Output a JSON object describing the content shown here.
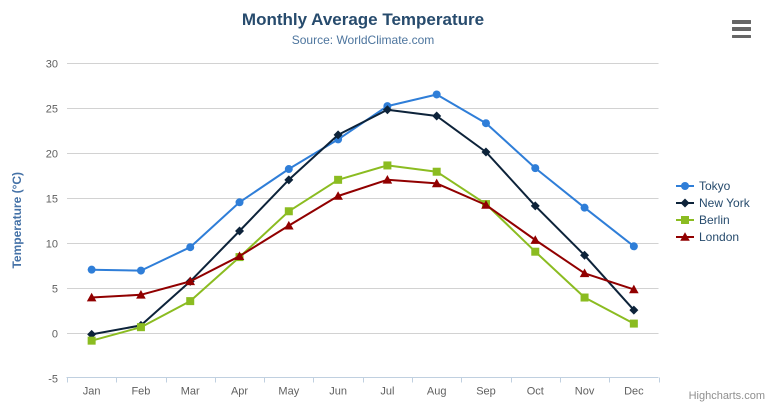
{
  "header": {
    "title": "Monthly Average Temperature",
    "subtitle": "Source: WorldClimate.com"
  },
  "export_menu": {
    "icon": "hamburger-menu-icon"
  },
  "credits": {
    "label": "Highcharts.com"
  },
  "colors": {
    "background": "#ffffff",
    "title_text": "#274b6d",
    "subtitle_text": "#4d759e",
    "axis_label": "#606060",
    "axis_title": "#4572a7",
    "grid_line": "#d2d2d2",
    "axis_line": "#c0d0e0",
    "legend_text": "#274b6d",
    "credits_text": "#909090",
    "menu_icon": "#666666"
  },
  "chart_data": {
    "type": "line",
    "title": "Monthly Average Temperature",
    "subtitle": "Source: WorldClimate.com",
    "categories": [
      "Jan",
      "Feb",
      "Mar",
      "Apr",
      "May",
      "Jun",
      "Jul",
      "Aug",
      "Sep",
      "Oct",
      "Nov",
      "Dec"
    ],
    "series": [
      {
        "name": "Tokyo",
        "color": "#2f7ed8",
        "marker": "circle",
        "values": [
          7.0,
          6.9,
          9.5,
          14.5,
          18.2,
          21.5,
          25.2,
          26.5,
          23.3,
          18.3,
          13.9,
          9.6
        ]
      },
      {
        "name": "New York",
        "color": "#0d233a",
        "marker": "diamond",
        "values": [
          -0.2,
          0.8,
          5.7,
          11.3,
          17.0,
          22.0,
          24.8,
          24.1,
          20.1,
          14.1,
          8.6,
          2.5
        ]
      },
      {
        "name": "Berlin",
        "color": "#8bbc21",
        "marker": "square",
        "values": [
          -0.9,
          0.6,
          3.5,
          8.4,
          13.5,
          17.0,
          18.6,
          17.9,
          14.3,
          9.0,
          3.9,
          1.0
        ]
      },
      {
        "name": "London",
        "color": "#910000",
        "marker": "triangle",
        "values": [
          3.9,
          4.2,
          5.7,
          8.5,
          11.9,
          15.2,
          17.0,
          16.6,
          14.2,
          10.3,
          6.6,
          4.8
        ]
      }
    ],
    "xlabel": "",
    "ylabel": "Temperature (°C)",
    "ylim": [
      -5,
      30
    ],
    "ytick_step": 5,
    "grid": true,
    "legend_position": "middle-right"
  }
}
